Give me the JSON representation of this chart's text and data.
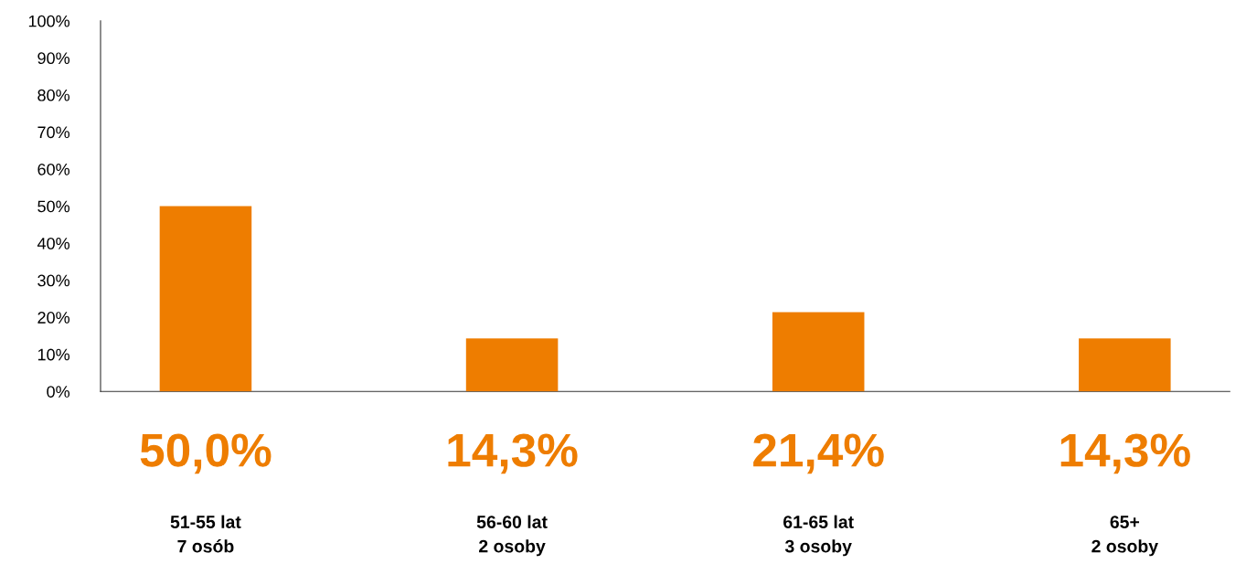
{
  "chart_data": {
    "type": "bar",
    "categories": [
      "51-55 lat\n7 osób",
      "56-60 lat\n2 osoby",
      "61-65 lat\n3 osoby",
      "65+\n2 osoby"
    ],
    "values": [
      50.0,
      14.3,
      21.4,
      14.3
    ],
    "value_labels": [
      "50,0%",
      "14,3%",
      "21,4%",
      "14,3%"
    ],
    "color": "#ee7d00",
    "ylim": [
      0,
      100
    ],
    "yticks": [
      {
        "value": 0,
        "label": "0%"
      },
      {
        "value": 10,
        "label": "10%"
      },
      {
        "value": 20,
        "label": "20%"
      },
      {
        "value": 30,
        "label": "30%"
      },
      {
        "value": 40,
        "label": "40%"
      },
      {
        "value": 50,
        "label": "50%"
      },
      {
        "value": 60,
        "label": "60%"
      },
      {
        "value": 70,
        "label": "70%"
      },
      {
        "value": 80,
        "label": "80%"
      },
      {
        "value": 90,
        "label": "90%"
      },
      {
        "value": 100,
        "label": "100%"
      }
    ],
    "grid": false,
    "legend": false
  }
}
